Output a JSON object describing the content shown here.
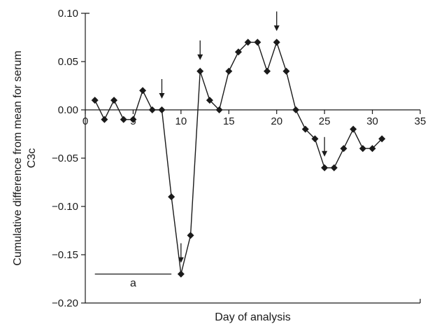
{
  "chart_data": {
    "type": "line",
    "title": "",
    "xlabel": "Day of analysis",
    "ylabel_lines": [
      "Cumulative difference from mean for serum",
      "C3c"
    ],
    "xlim": [
      0,
      35
    ],
    "ylim": [
      -0.2,
      0.1
    ],
    "x_ticks": [
      0,
      5,
      10,
      15,
      20,
      25,
      30,
      35
    ],
    "x_tick_labels": [
      "0",
      "5",
      "10",
      "15",
      "20",
      "25",
      "30",
      "35"
    ],
    "y_ticks": [
      0.1,
      0.05,
      0.0,
      -0.05,
      -0.1,
      -0.15,
      -0.2
    ],
    "y_tick_labels": [
      "0.10",
      "0.05",
      "0.00",
      "−0.05",
      "−0.10",
      "−0.15",
      "−0.20"
    ],
    "grid": false,
    "marker": "diamond",
    "series": [
      {
        "x": [
          1,
          2,
          3,
          4,
          5,
          6,
          7,
          8,
          9,
          10,
          11,
          12,
          13,
          14,
          15,
          16,
          17,
          18,
          19,
          20,
          21,
          22,
          23,
          24,
          25,
          26,
          27,
          28,
          29,
          30,
          31
        ],
        "y": [
          0.01,
          -0.01,
          0.01,
          -0.01,
          -0.01,
          0.02,
          0.0,
          0.0,
          -0.09,
          -0.17,
          -0.13,
          0.04,
          0.01,
          0.0,
          0.04,
          0.06,
          0.07,
          0.07,
          0.04,
          0.07,
          0.04,
          0.0,
          -0.02,
          -0.03,
          -0.06,
          -0.06,
          -0.04,
          -0.02,
          -0.04,
          -0.04,
          -0.03
        ]
      }
    ],
    "arrows_at_day": [
      8,
      10,
      12,
      20,
      25
    ],
    "annotation": {
      "text": "a",
      "x_range": [
        1,
        9
      ],
      "y": -0.17
    }
  }
}
